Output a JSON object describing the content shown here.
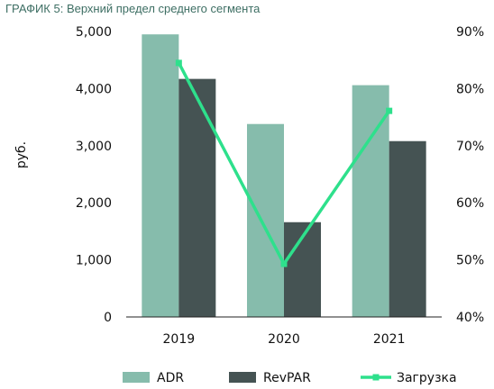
{
  "chart_data": {
    "type": "bar",
    "title": "ГРАФИК 5: Верхний предел среднего сегмента",
    "ylabel": "руб.",
    "categories": [
      "2019",
      "2020",
      "2021"
    ],
    "ylim": [
      0,
      5000
    ],
    "yticks": [
      "0",
      "1,000",
      "2,000",
      "3,000",
      "4,000",
      "5,000"
    ],
    "y2lim": [
      40,
      90
    ],
    "y2ticks": [
      "40%",
      "50%",
      "60%",
      "70%",
      "80%",
      "90%"
    ],
    "series": [
      {
        "name": "ADR",
        "kind": "bar",
        "axis": "left",
        "color": "#86bcac",
        "values": [
          4950,
          3380,
          4060
        ]
      },
      {
        "name": "RevPAR",
        "kind": "bar",
        "axis": "left",
        "color": "#455353",
        "values": [
          4170,
          1660,
          3080
        ]
      },
      {
        "name": "Загрузка",
        "kind": "line",
        "axis": "right",
        "color": "#2ee08c",
        "values": [
          84.5,
          49.3,
          76.1
        ]
      }
    ],
    "legend_position": "bottom",
    "grid": false
  }
}
